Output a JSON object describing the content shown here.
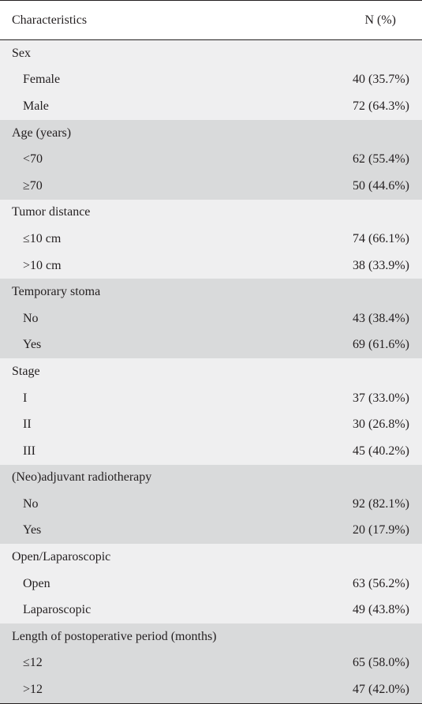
{
  "header": {
    "characteristics": "Characteristics",
    "n_percent": "N (%)"
  },
  "groups": [
    {
      "title": "Sex",
      "rows": [
        {
          "label": "Female",
          "value": "40 (35.7%)"
        },
        {
          "label": "Male",
          "value": "72 (64.3%)"
        }
      ]
    },
    {
      "title": "Age (years)",
      "rows": [
        {
          "label": "<70",
          "value": "62 (55.4%)"
        },
        {
          "label": "≥70",
          "value": "50 (44.6%)"
        }
      ]
    },
    {
      "title": "Tumor distance",
      "rows": [
        {
          "label": "≤10 cm",
          "value": "74 (66.1%)"
        },
        {
          "label": ">10 cm",
          "value": "38 (33.9%)"
        }
      ]
    },
    {
      "title": "Temporary stoma",
      "rows": [
        {
          "label": "No",
          "value": "43 (38.4%)"
        },
        {
          "label": "Yes",
          "value": "69 (61.6%)"
        }
      ]
    },
    {
      "title": "Stage",
      "rows": [
        {
          "label": "I",
          "value": "37 (33.0%)"
        },
        {
          "label": "II",
          "value": "30 (26.8%)"
        },
        {
          "label": "III",
          "value": "45 (40.2%)"
        }
      ]
    },
    {
      "title": "(Neo)adjuvant radiotherapy",
      "rows": [
        {
          "label": "No",
          "value": "92 (82.1%)"
        },
        {
          "label": "Yes",
          "value": "20 (17.9%)"
        }
      ]
    },
    {
      "title": "Open/Laparoscopic",
      "rows": [
        {
          "label": "Open",
          "value": "63 (56.2%)"
        },
        {
          "label": "Laparoscopic",
          "value": "49 (43.8%)"
        }
      ]
    },
    {
      "title": "Length of postoperative period (months)",
      "rows": [
        {
          "label": "≤12",
          "value": "65 (58.0%)"
        },
        {
          "label": ">12",
          "value": "47 (42.0%)"
        }
      ]
    }
  ],
  "colors": {
    "light_band": "#efeff0",
    "dark_band": "#d9dadb",
    "text": "#231f20"
  }
}
